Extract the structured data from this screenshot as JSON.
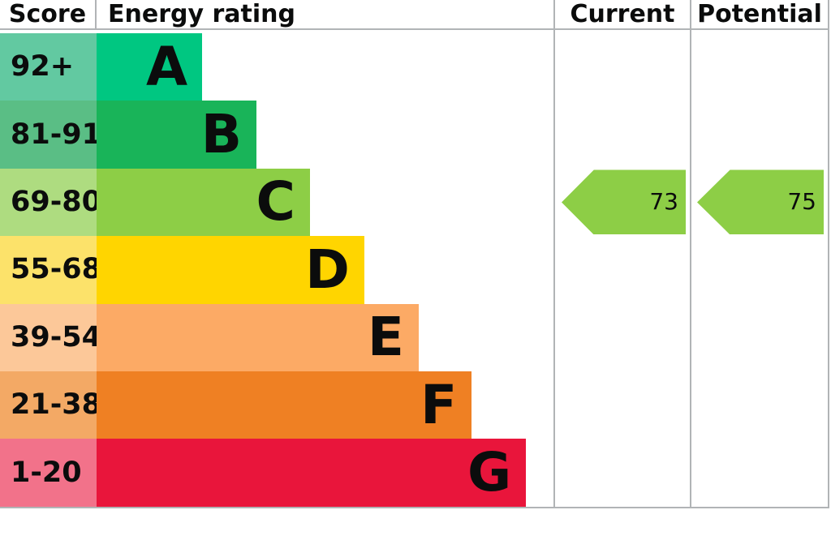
{
  "header": {
    "score": "Score",
    "energy_rating": "Energy rating",
    "current": "Current",
    "potential": "Potential"
  },
  "bands": [
    {
      "letter": "A",
      "range": "92+",
      "color": "#00c781",
      "score_color": "#62c9a1",
      "bar_width": "23.1%"
    },
    {
      "letter": "B",
      "range": "81-91",
      "color": "#19b459",
      "score_color": "#5abe85",
      "bar_width": "35.0%"
    },
    {
      "letter": "C",
      "range": "69-80",
      "color": "#8dce46",
      "score_color": "#aedc80",
      "bar_width": "46.7%"
    },
    {
      "letter": "D",
      "range": "55-68",
      "color": "#ffd500",
      "score_color": "#fce26a",
      "bar_width": "58.6%"
    },
    {
      "letter": "E",
      "range": "39-54",
      "color": "#fcaa65",
      "score_color": "#fcc899",
      "bar_width": "70.5%"
    },
    {
      "letter": "F",
      "range": "21-38",
      "color": "#ef8023",
      "score_color": "#f3a965",
      "bar_width": "82.1%"
    },
    {
      "letter": "G",
      "range": "1-20",
      "color": "#e9153b",
      "score_color": "#f2728a",
      "bar_width": "94.0%"
    }
  ],
  "current": {
    "value": "73",
    "band": "C",
    "color": "#8dce46"
  },
  "potential": {
    "value": "75",
    "band": "C",
    "color": "#8dce46"
  },
  "chart_data": {
    "type": "bar",
    "orientation": "horizontal",
    "title": "Energy rating",
    "categories": [
      "A",
      "B",
      "C",
      "D",
      "E",
      "F",
      "G"
    ],
    "score_ranges": [
      "92+",
      "81-91",
      "69-80",
      "55-68",
      "39-54",
      "21-38",
      "1-20"
    ],
    "band_colors": [
      "#00c781",
      "#19b459",
      "#8dce46",
      "#ffd500",
      "#fcaa65",
      "#ef8023",
      "#e9153b"
    ],
    "bar_lengths_pct_of_column": [
      23.1,
      35.0,
      46.7,
      58.6,
      70.5,
      82.1,
      94.0
    ],
    "column_headers": [
      "Score",
      "Energy rating",
      "Current",
      "Potential"
    ],
    "markers": [
      {
        "label": "Current",
        "value": 73,
        "band": "C",
        "color": "#8dce46"
      },
      {
        "label": "Potential",
        "value": 75,
        "band": "C",
        "color": "#8dce46"
      }
    ],
    "legend_position": "none",
    "grid": false
  }
}
